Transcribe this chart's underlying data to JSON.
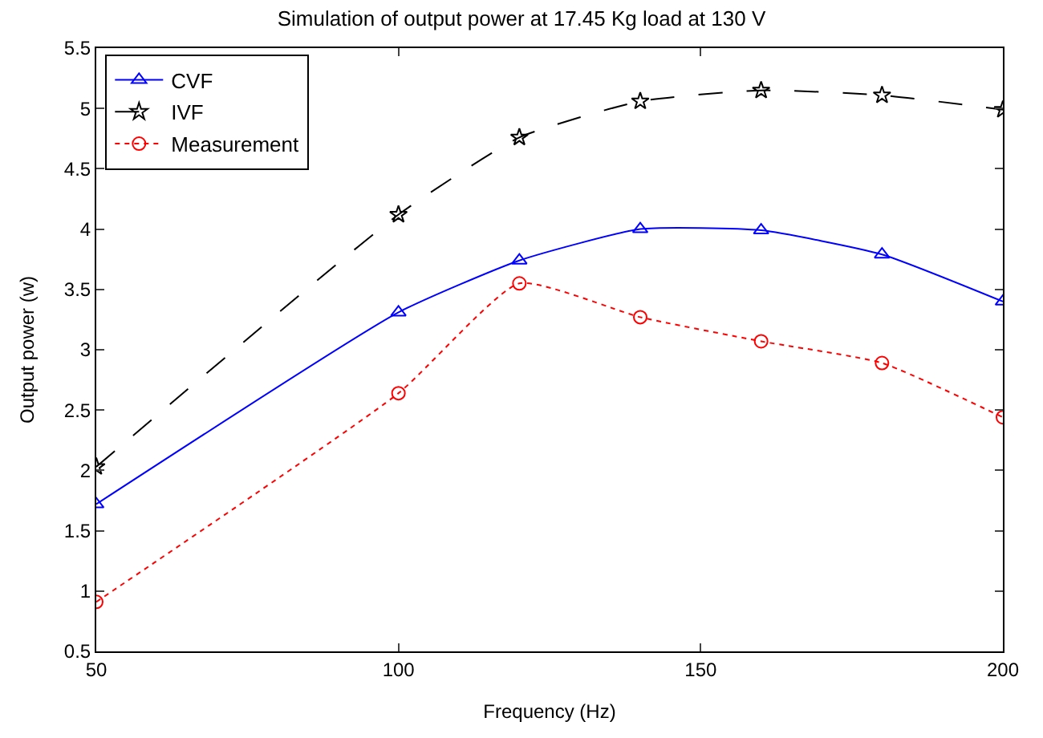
{
  "chart_data": {
    "type": "line",
    "title": "Simulation of output power at 17.45 Kg load at 130 V",
    "xlabel": "Frequency (Hz)",
    "ylabel": "Output power (w)",
    "x": [
      50,
      100,
      120,
      140,
      160,
      180,
      200
    ],
    "series": [
      {
        "name": "CVF",
        "color": "#0000ff",
        "marker": "triangle",
        "line_style": "solid",
        "values": [
          1.72,
          3.31,
          3.74,
          4.0,
          3.99,
          3.79,
          3.4
        ]
      },
      {
        "name": "IVF",
        "color": "#000000",
        "marker": "star",
        "line_style": "dashed",
        "values": [
          2.03,
          4.12,
          4.76,
          5.06,
          5.15,
          5.11,
          4.99
        ]
      },
      {
        "name": "Measurement",
        "color": "#ff0000",
        "marker": "circle",
        "line_style": "dotted",
        "values": [
          0.91,
          2.64,
          3.55,
          3.27,
          3.07,
          2.89,
          2.44
        ]
      }
    ],
    "xlim": [
      50,
      200
    ],
    "xticks": [
      50,
      100,
      150,
      200
    ],
    "ylim": [
      0.5,
      5.5
    ],
    "yticks": [
      0.5,
      1,
      1.5,
      2,
      2.5,
      3,
      3.5,
      4,
      4.5,
      5,
      5.5
    ],
    "grid": false,
    "legend": "top left"
  }
}
